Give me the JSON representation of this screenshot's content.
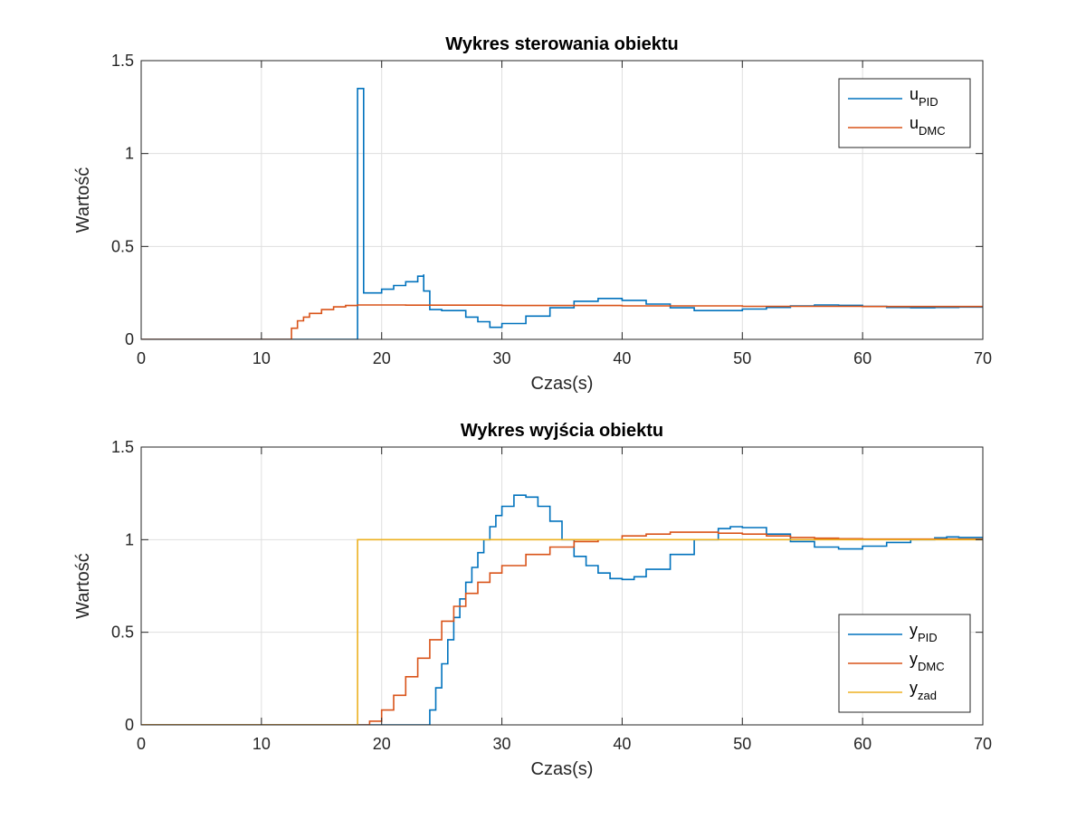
{
  "chart_data": [
    {
      "type": "line",
      "step": true,
      "title": "Wykres sterowania obiektu",
      "xlabel": "Czas(s)",
      "ylabel": "Wartość",
      "xlim": [
        0,
        70
      ],
      "ylim": [
        0,
        1.5
      ],
      "xticks": [
        "0",
        "10",
        "20",
        "30",
        "40",
        "50",
        "60",
        "70"
      ],
      "yticks": [
        "0",
        "0.5",
        "1",
        "1.5"
      ],
      "grid": true,
      "legend_position": "top-right",
      "series": [
        {
          "name": "u_PID",
          "label": "u",
          "sub": "PID",
          "color": "#0072BD",
          "points": [
            [
              0,
              0
            ],
            [
              18,
              0
            ],
            [
              18,
              1.35
            ],
            [
              18.5,
              1.35
            ],
            [
              18.5,
              0.25
            ],
            [
              19,
              0.25
            ],
            [
              20,
              0.27
            ],
            [
              21,
              0.29
            ],
            [
              22,
              0.31
            ],
            [
              23,
              0.34
            ],
            [
              23.5,
              0.35
            ],
            [
              23.5,
              0.26
            ],
            [
              24,
              0.26
            ],
            [
              24,
              0.16
            ],
            [
              25,
              0.155
            ],
            [
              27,
              0.12
            ],
            [
              28,
              0.095
            ],
            [
              29,
              0.065
            ],
            [
              30,
              0.085
            ],
            [
              32,
              0.125
            ],
            [
              34,
              0.17
            ],
            [
              36,
              0.205
            ],
            [
              38,
              0.22
            ],
            [
              40,
              0.21
            ],
            [
              42,
              0.19
            ],
            [
              44,
              0.17
            ],
            [
              46,
              0.155
            ],
            [
              48,
              0.155
            ],
            [
              50,
              0.163
            ],
            [
              52,
              0.172
            ],
            [
              54,
              0.18
            ],
            [
              56,
              0.185
            ],
            [
              58,
              0.183
            ],
            [
              60,
              0.178
            ],
            [
              62,
              0.172
            ],
            [
              64,
              0.17
            ],
            [
              66,
              0.172
            ],
            [
              68,
              0.174
            ],
            [
              70,
              0.175
            ]
          ]
        },
        {
          "name": "u_DMC",
          "label": "u",
          "sub": "DMC",
          "color": "#D95319",
          "points": [
            [
              0,
              0
            ],
            [
              12.5,
              0
            ],
            [
              12.5,
              0.06
            ],
            [
              13,
              0.1
            ],
            [
              13.5,
              0.12
            ],
            [
              14,
              0.14
            ],
            [
              15,
              0.16
            ],
            [
              16,
              0.175
            ],
            [
              17,
              0.182
            ],
            [
              18,
              0.185
            ],
            [
              22,
              0.184
            ],
            [
              30,
              0.182
            ],
            [
              40,
              0.18
            ],
            [
              50,
              0.178
            ],
            [
              60,
              0.177
            ],
            [
              70,
              0.176
            ]
          ]
        }
      ]
    },
    {
      "type": "line",
      "step": true,
      "title": "Wykres wyjścia obiektu",
      "xlabel": "Czas(s)",
      "ylabel": "Wartość",
      "xlim": [
        0,
        70
      ],
      "ylim": [
        0,
        1.5
      ],
      "xticks": [
        "0",
        "10",
        "20",
        "30",
        "40",
        "50",
        "60",
        "70"
      ],
      "yticks": [
        "0",
        "0.5",
        "1",
        "1.5"
      ],
      "grid": true,
      "legend_position": "bottom-right",
      "series": [
        {
          "name": "y_PID",
          "label": "y",
          "sub": "PID",
          "color": "#0072BD",
          "points": [
            [
              0,
              0
            ],
            [
              23.5,
              0
            ],
            [
              24,
              0.08
            ],
            [
              24.5,
              0.2
            ],
            [
              25,
              0.33
            ],
            [
              25.5,
              0.46
            ],
            [
              26,
              0.58
            ],
            [
              26.5,
              0.68
            ],
            [
              27,
              0.77
            ],
            [
              27.5,
              0.85
            ],
            [
              28,
              0.93
            ],
            [
              28.5,
              1.0
            ],
            [
              29,
              1.07
            ],
            [
              29.5,
              1.13
            ],
            [
              30,
              1.18
            ],
            [
              31,
              1.24
            ],
            [
              32,
              1.23
            ],
            [
              33,
              1.18
            ],
            [
              34,
              1.1
            ],
            [
              35,
              1.0
            ],
            [
              36,
              0.91
            ],
            [
              37,
              0.86
            ],
            [
              38,
              0.82
            ],
            [
              39,
              0.79
            ],
            [
              40,
              0.785
            ],
            [
              41,
              0.8
            ],
            [
              42,
              0.84
            ],
            [
              44,
              0.92
            ],
            [
              46,
              1.0
            ],
            [
              48,
              1.06
            ],
            [
              49,
              1.07
            ],
            [
              50,
              1.065
            ],
            [
              52,
              1.03
            ],
            [
              54,
              0.99
            ],
            [
              56,
              0.96
            ],
            [
              58,
              0.95
            ],
            [
              60,
              0.965
            ],
            [
              62,
              0.985
            ],
            [
              64,
              1.0
            ],
            [
              66,
              1.01
            ],
            [
              67,
              1.015
            ],
            [
              68,
              1.012
            ],
            [
              70,
              1.005
            ]
          ]
        },
        {
          "name": "y_DMC",
          "label": "y",
          "sub": "DMC",
          "color": "#D95319",
          "points": [
            [
              0,
              0
            ],
            [
              18,
              0
            ],
            [
              19,
              0.02
            ],
            [
              20,
              0.08
            ],
            [
              21,
              0.16
            ],
            [
              22,
              0.26
            ],
            [
              23,
              0.36
            ],
            [
              24,
              0.46
            ],
            [
              25,
              0.56
            ],
            [
              26,
              0.64
            ],
            [
              27,
              0.71
            ],
            [
              28,
              0.77
            ],
            [
              29,
              0.82
            ],
            [
              30,
              0.86
            ],
            [
              32,
              0.92
            ],
            [
              34,
              0.96
            ],
            [
              36,
              0.99
            ],
            [
              38,
              1.0
            ],
            [
              40,
              1.02
            ],
            [
              42,
              1.03
            ],
            [
              44,
              1.04
            ],
            [
              46,
              1.04
            ],
            [
              48,
              1.035
            ],
            [
              50,
              1.03
            ],
            [
              52,
              1.02
            ],
            [
              54,
              1.012
            ],
            [
              56,
              1.008
            ],
            [
              58,
              1.005
            ],
            [
              60,
              1.003
            ],
            [
              70,
              1.0
            ]
          ]
        },
        {
          "name": "y_zad",
          "label": "y",
          "sub": "zad",
          "color": "#EDB120",
          "points": [
            [
              0,
              0
            ],
            [
              18,
              0
            ],
            [
              18,
              1
            ],
            [
              70,
              1
            ]
          ]
        }
      ]
    }
  ]
}
